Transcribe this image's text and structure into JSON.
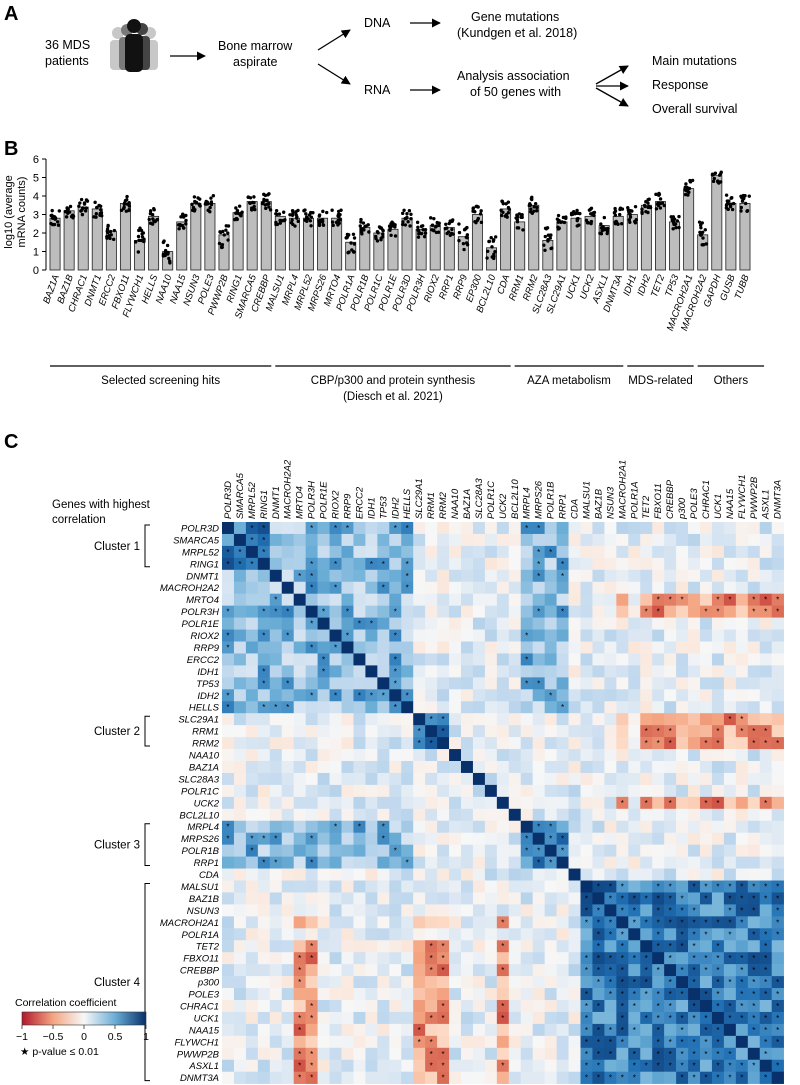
{
  "panel_labels": {
    "a": "A",
    "b": "B",
    "c": "C"
  },
  "panel_a": {
    "patients": "36 MDS",
    "patients_line2": "patients",
    "bone_marrow": "Bone marrow",
    "aspirate": "aspirate",
    "dna": "DNA",
    "rna": "RNA",
    "gene_mutations": "Gene mutations",
    "kundgen": "(Kundgen et al. 2018)",
    "analysis": "Analysis association",
    "analysis2": "of 50 genes with",
    "outcomes": [
      "Main mutations",
      "Response",
      "Overall survival"
    ]
  },
  "panel_b": {
    "groups": [
      {
        "label": "Selected screening hits",
        "label2": "",
        "start": 0,
        "end": 15
      },
      {
        "label": "CBP/p300 and protein synthesis",
        "label2": "(Diesch et al. 2021)",
        "start": 16,
        "end": 32
      },
      {
        "label": "AZA metabolism",
        "label2": "",
        "start": 33,
        "end": 40
      },
      {
        "label": "MDS-related",
        "label2": "",
        "start": 41,
        "end": 45
      },
      {
        "label": "Others",
        "label2": "",
        "start": 46,
        "end": 50
      }
    ]
  },
  "chart_data": [
    {
      "type": "bar",
      "title": "",
      "ylabel": "log10 (average mRNA counts)",
      "ylabel_line1": "log10 (average",
      "ylabel_line2": "mRNA counts)",
      "ylim": [
        0,
        6
      ],
      "yticks": [
        "0",
        "1",
        "2",
        "3",
        "4",
        "5",
        "6"
      ],
      "categories": [
        "BAZ1A",
        "BAZ1B",
        "CHRAC1",
        "DNMT1",
        "ERCC2",
        "FBXO11",
        "FLYWCH1",
        "HELLS",
        "NAA10",
        "NAA15",
        "NSUN3",
        "POLE3",
        "PWWP2B",
        "RING1",
        "SMARCA5",
        "CREBBP",
        "MALSU1",
        "MRPL4",
        "MRPL52",
        "MRPS26",
        "MRTO4",
        "POLR1A",
        "POLR1B",
        "POLR1C",
        "POLR1E",
        "POLR3D",
        "POLR3H",
        "RIOX2",
        "RRP1",
        "RRP9",
        "EP300",
        "BCL2L10",
        "CDA",
        "RRM1",
        "RRM2",
        "SLC28A3",
        "SLC29A1",
        "UCK1",
        "UCK2",
        "ASXL1",
        "DNMT3A",
        "IDH1",
        "IDH2",
        "TET2",
        "TP53",
        "MACROH2A1",
        "MACROH2A2",
        "GAPDH",
        "GUSB",
        "TUBB"
      ],
      "values": [
        2.8,
        3.2,
        3.4,
        3.3,
        2.1,
        3.6,
        1.6,
        2.9,
        1.0,
        2.6,
        3.6,
        3.6,
        1.9,
        3.1,
        3.7,
        3.7,
        2.9,
        2.8,
        2.8,
        2.8,
        2.8,
        1.5,
        2.3,
        2.0,
        2.2,
        2.8,
        2.2,
        2.4,
        2.3,
        1.8,
        3.0,
        1.2,
        3.3,
        2.6,
        3.5,
        1.6,
        2.6,
        2.8,
        2.9,
        2.4,
        2.9,
        3.0,
        3.5,
        3.7,
        2.6,
        4.4,
        1.9,
        5.1,
        3.6,
        3.6
      ]
    },
    {
      "type": "heatmap",
      "title": "Genes with highest correlation",
      "title_line1": "Genes with highest",
      "title_line2": "correlation",
      "genes": [
        "POLR3D",
        "SMARCA5",
        "MRPL52",
        "RING1",
        "DNMT1",
        "MACROH2A2",
        "MRTO4",
        "POLR3H",
        "POLR1E",
        "RIOX2",
        "RRP9",
        "ERCC2",
        "IDH1",
        "TP53",
        "IDH2",
        "HELLS",
        "SLC29A1",
        "RRM1",
        "RRM2",
        "NAA10",
        "BAZ1A",
        "SLC28A3",
        "POLR1C",
        "UCK2",
        "BCL2L10",
        "MRPL4",
        "MRPS26",
        "POLR1B",
        "RRP1",
        "CDA",
        "MALSU1",
        "BAZ1B",
        "NSUN3",
        "MACROH2A1",
        "POLR1A",
        "TET2",
        "FBXO11",
        "CREBBP",
        "p300",
        "POLE3",
        "CHRAC1",
        "UCK1",
        "NAA15",
        "FLYWCH1",
        "PWWP2B",
        "ASXL1",
        "DNMT3A"
      ],
      "clusters": [
        {
          "label": "Cluster 1",
          "start": 0,
          "end": 3
        },
        {
          "label": "Cluster 2",
          "start": 16,
          "end": 18
        },
        {
          "label": "Cluster 3",
          "start": 25,
          "end": 28
        },
        {
          "label": "Cluster 4",
          "start": 30,
          "end": 46
        }
      ],
      "colorbar": {
        "title": "Correlation coefficient",
        "ticks": [
          "−1",
          "−0.5",
          "0",
          "0.5",
          "1"
        ],
        "low": "#b2182b",
        "mid": "#f7f7f7",
        "high": "#08306b"
      },
      "significance_note": "★ p-value ≤ 0.01"
    }
  ]
}
